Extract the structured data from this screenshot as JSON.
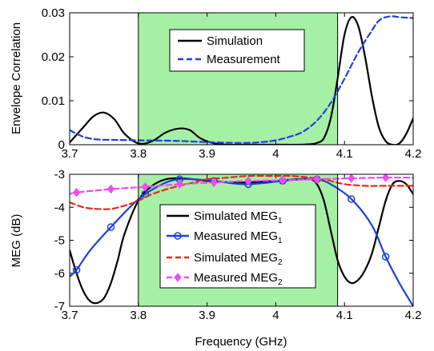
{
  "colors": {
    "band": "#a6f0a6",
    "simulated_black": "#000000",
    "measured_blue": "#1f3fdc",
    "simulated_red": "#e8281e",
    "measured_magenta": "#f04cf0"
  },
  "xlabel": "Frequency (GHz)",
  "chart_data": [
    {
      "type": "line",
      "ylabel": "Envelope Correlation",
      "xlim": [
        3.7,
        4.2
      ],
      "ylim": [
        0,
        0.03
      ],
      "xticks": [
        "3.7",
        "3.8",
        "3.9",
        "4",
        "4.1",
        "4.2"
      ],
      "yticks": [
        "0",
        "0.01",
        "0.02",
        "0.03"
      ],
      "shaded_band": [
        3.8,
        4.09
      ],
      "legend_position": "top-center",
      "series": [
        {
          "name": "Simulation",
          "style": "solid",
          "x": [
            3.7,
            3.72,
            3.735,
            3.75,
            3.765,
            3.78,
            3.8,
            3.82,
            3.84,
            3.86,
            3.875,
            3.89,
            3.91,
            3.93,
            3.95,
            3.97,
            3.99,
            4.01,
            4.03,
            4.05,
            4.06,
            4.07,
            4.08,
            4.09,
            4.1,
            4.11,
            4.12,
            4.13,
            4.14,
            4.15,
            4.16,
            4.17,
            4.18,
            4.19,
            4.2
          ],
          "y": [
            0.0005,
            0.004,
            0.0065,
            0.0073,
            0.0058,
            0.0025,
            0.0003,
            0.0008,
            0.0028,
            0.0037,
            0.0033,
            0.0015,
            0.0003,
            0.0,
            0.0,
            0.0,
            0.0,
            0.0,
            0.0,
            0.0001,
            0.0004,
            0.0015,
            0.006,
            0.015,
            0.025,
            0.029,
            0.027,
            0.02,
            0.011,
            0.004,
            0.0008,
            0.0,
            0.0003,
            0.0025,
            0.006
          ]
        },
        {
          "name": "Measurement",
          "style": "dashed",
          "x": [
            3.7,
            3.72,
            3.74,
            3.76,
            3.8,
            3.85,
            3.9,
            3.95,
            3.98,
            4.0,
            4.02,
            4.04,
            4.06,
            4.08,
            4.1,
            4.12,
            4.14,
            4.15,
            4.16,
            4.17,
            4.18,
            4.2
          ],
          "y": [
            0.0033,
            0.0018,
            0.0012,
            0.0011,
            0.001,
            0.0009,
            0.0006,
            0.0004,
            0.0006,
            0.001,
            0.0018,
            0.003,
            0.0055,
            0.0095,
            0.015,
            0.021,
            0.026,
            0.0282,
            0.029,
            0.0292,
            0.029,
            0.0288
          ]
        }
      ]
    },
    {
      "type": "line",
      "ylabel": "MEG (dB)",
      "xlim": [
        3.7,
        4.2
      ],
      "ylim": [
        -7,
        -3
      ],
      "xticks": [
        "3.7",
        "3.8",
        "3.9",
        "4",
        "4.1",
        "4.2"
      ],
      "yticks": [
        "-3",
        "-4",
        "-5",
        "-6",
        "-7"
      ],
      "shaded_band": [
        3.8,
        4.09
      ],
      "legend_position": "bottom-center",
      "series": [
        {
          "name": "Simulated MEG",
          "subscript": "1",
          "style": "solid",
          "marker": "none",
          "x": [
            3.7,
            3.71,
            3.72,
            3.73,
            3.74,
            3.75,
            3.76,
            3.77,
            3.78,
            3.8,
            3.82,
            3.84,
            3.86,
            3.88,
            3.9,
            3.95,
            4.0,
            4.03,
            4.05,
            4.06,
            4.07,
            4.08,
            4.09,
            4.1,
            4.11,
            4.12,
            4.13,
            4.14,
            4.15,
            4.16,
            4.17,
            4.18,
            4.19,
            4.2
          ],
          "y": [
            -5.3,
            -6.0,
            -6.55,
            -6.85,
            -6.9,
            -6.75,
            -6.3,
            -5.6,
            -4.8,
            -3.8,
            -3.35,
            -3.15,
            -3.12,
            -3.15,
            -3.2,
            -3.25,
            -3.2,
            -3.15,
            -3.15,
            -3.3,
            -3.8,
            -4.7,
            -5.6,
            -6.1,
            -6.3,
            -6.2,
            -5.9,
            -5.4,
            -4.6,
            -3.8,
            -3.3,
            -3.2,
            -3.3,
            -3.6
          ]
        },
        {
          "name": "Measured MEG",
          "subscript": "1",
          "style": "solid",
          "marker": "circle",
          "marker_x": [
            3.71,
            3.76,
            3.81,
            3.86,
            3.91,
            3.96,
            4.01,
            4.06,
            4.11,
            4.16
          ],
          "x": [
            3.7,
            3.71,
            3.73,
            3.76,
            3.79,
            3.81,
            3.84,
            3.86,
            3.88,
            3.91,
            3.94,
            3.96,
            3.99,
            4.01,
            4.04,
            4.06,
            4.08,
            4.11,
            4.14,
            4.16,
            4.18,
            4.2
          ],
          "y": [
            -6.1,
            -5.9,
            -5.3,
            -4.6,
            -3.95,
            -3.6,
            -3.25,
            -3.15,
            -3.15,
            -3.2,
            -3.28,
            -3.3,
            -3.25,
            -3.2,
            -3.15,
            -3.15,
            -3.3,
            -3.75,
            -4.55,
            -5.5,
            -6.3,
            -7.0
          ]
        },
        {
          "name": "Simulated MEG",
          "subscript": "2",
          "style": "dashed",
          "marker": "none",
          "x": [
            3.7,
            3.72,
            3.74,
            3.76,
            3.78,
            3.8,
            3.82,
            3.85,
            3.88,
            3.9,
            3.93,
            3.96,
            3.99,
            4.02,
            4.05,
            4.08,
            4.1,
            4.13,
            4.16,
            4.2
          ],
          "y": [
            -3.85,
            -4.0,
            -4.05,
            -4.05,
            -3.95,
            -3.8,
            -3.6,
            -3.4,
            -3.25,
            -3.15,
            -3.1,
            -3.05,
            -3.05,
            -3.05,
            -3.1,
            -3.2,
            -3.3,
            -3.35,
            -3.35,
            -3.35
          ]
        },
        {
          "name": "Measured MEG",
          "subscript": "2",
          "style": "dashed",
          "marker": "diamond",
          "marker_x": [
            3.71,
            3.76,
            3.81,
            3.86,
            3.91,
            3.96,
            4.01,
            4.06,
            4.11,
            4.16
          ],
          "x": [
            3.7,
            3.71,
            3.76,
            3.81,
            3.86,
            3.91,
            3.96,
            4.01,
            4.06,
            4.11,
            4.16,
            4.2
          ],
          "y": [
            -3.6,
            -3.55,
            -3.45,
            -3.38,
            -3.3,
            -3.25,
            -3.2,
            -3.18,
            -3.15,
            -3.12,
            -3.1,
            -3.1
          ]
        }
      ]
    }
  ]
}
